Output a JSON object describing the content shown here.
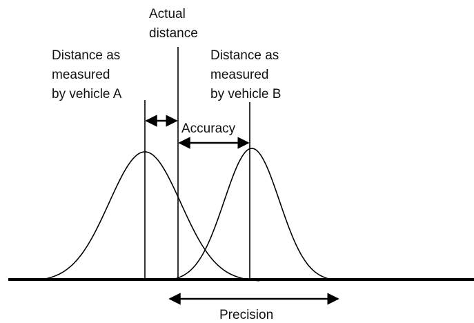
{
  "actual_distance": [
    "Actual",
    "distance"
  ],
  "vehicle_a": [
    "Distance as",
    "measured",
    "by vehicle A"
  ],
  "vehicle_b": [
    "Distance as",
    "measured",
    "by vehicle B"
  ],
  "accuracy": "Accuracy",
  "precision": "Precision"
}
